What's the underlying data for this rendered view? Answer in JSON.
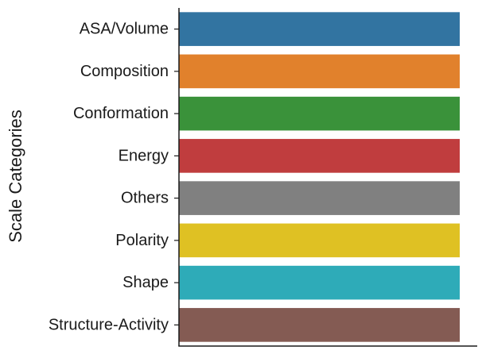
{
  "chart_data": {
    "type": "bar",
    "orientation": "horizontal",
    "ylabel": "Scale Categories",
    "xlabel": "",
    "categories": [
      "ASA/Volume",
      "Composition",
      "Conformation",
      "Energy",
      "Others",
      "Polarity",
      "Shape",
      "Structure-Activity"
    ],
    "values": [
      1,
      1,
      1,
      1,
      1,
      1,
      1,
      1
    ],
    "xlim": [
      0,
      1
    ],
    "colors": [
      "#3274a1",
      "#e1812c",
      "#3a923a",
      "#c03d3e",
      "#808080",
      "#dfc123",
      "#2eabb8",
      "#845b53"
    ],
    "grid": false,
    "legend": "none"
  }
}
